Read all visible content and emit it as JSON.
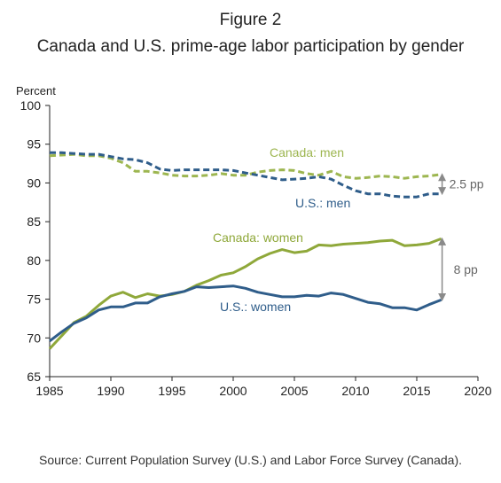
{
  "figure_label": "Figure 2",
  "title": "Canada and U.S. prime-age labor participation by gender",
  "source": "Source: Current Population Survey (U.S.) and Labor Force Survey (Canada).",
  "colors": {
    "canada": "#8fa83a",
    "us": "#2f5d8a",
    "canada_men": "#9db650",
    "annotation": "#8a8a8a",
    "axis": "#222222"
  },
  "chart_data": {
    "type": "line",
    "ylabel": "Percent",
    "xlabel": "",
    "xlim": [
      1985,
      2020
    ],
    "ylim": [
      65,
      100
    ],
    "xticks": [
      1985,
      1990,
      1995,
      2000,
      2005,
      2010,
      2015,
      2020
    ],
    "yticks": [
      65,
      70,
      75,
      80,
      85,
      90,
      95,
      100
    ],
    "grid": false,
    "x": [
      1985,
      1986,
      1987,
      1988,
      1989,
      1990,
      1991,
      1992,
      1993,
      1994,
      1995,
      1996,
      1997,
      1998,
      1999,
      2000,
      2001,
      2002,
      2003,
      2004,
      2005,
      2006,
      2007,
      2008,
      2009,
      2010,
      2011,
      2012,
      2013,
      2014,
      2015,
      2016,
      2017
    ],
    "series": [
      {
        "name": "Canada: men",
        "country": "canada",
        "style": "dashed",
        "values": [
          93.5,
          93.6,
          93.7,
          93.5,
          93.5,
          93.2,
          92.6,
          91.5,
          91.5,
          91.3,
          91.0,
          90.9,
          90.9,
          91.0,
          91.2,
          91.0,
          91.0,
          91.4,
          91.6,
          91.7,
          91.6,
          91.2,
          91.0,
          91.5,
          90.8,
          90.6,
          90.7,
          90.9,
          90.8,
          90.6,
          90.8,
          90.9,
          91.1
        ]
      },
      {
        "name": "U.S.: men",
        "country": "us",
        "style": "dashed",
        "values": [
          93.9,
          93.9,
          93.8,
          93.7,
          93.7,
          93.4,
          93.1,
          93.0,
          92.6,
          91.8,
          91.6,
          91.7,
          91.7,
          91.7,
          91.7,
          91.6,
          91.3,
          91.0,
          90.7,
          90.4,
          90.5,
          90.6,
          90.8,
          90.5,
          89.7,
          89.0,
          88.6,
          88.6,
          88.3,
          88.2,
          88.2,
          88.6,
          88.6
        ]
      },
      {
        "name": "Canada: women",
        "country": "canada",
        "style": "solid",
        "values": [
          68.6,
          70.3,
          72.0,
          72.8,
          74.2,
          75.4,
          75.9,
          75.2,
          75.7,
          75.4,
          75.6,
          76.0,
          76.8,
          77.4,
          78.1,
          78.4,
          79.2,
          80.2,
          80.9,
          81.4,
          81.0,
          81.2,
          82.0,
          81.9,
          82.1,
          82.2,
          82.3,
          82.5,
          82.6,
          81.9,
          82.0,
          82.2,
          82.8
        ]
      },
      {
        "name": "U.S.: women",
        "country": "us",
        "style": "solid",
        "values": [
          69.6,
          70.8,
          71.9,
          72.6,
          73.6,
          74.0,
          74.0,
          74.5,
          74.5,
          75.3,
          75.7,
          76.0,
          76.6,
          76.5,
          76.6,
          76.7,
          76.4,
          75.9,
          75.6,
          75.3,
          75.3,
          75.5,
          75.4,
          75.8,
          75.6,
          75.1,
          74.6,
          74.4,
          73.9,
          73.9,
          73.6,
          74.3,
          74.9
        ]
      }
    ],
    "annotations": [
      {
        "label": "2.5 pp",
        "year": 2017,
        "from": 88.6,
        "to": 91.1
      },
      {
        "label": "8 pp",
        "year": 2017,
        "from": 74.9,
        "to": 82.8
      }
    ]
  }
}
